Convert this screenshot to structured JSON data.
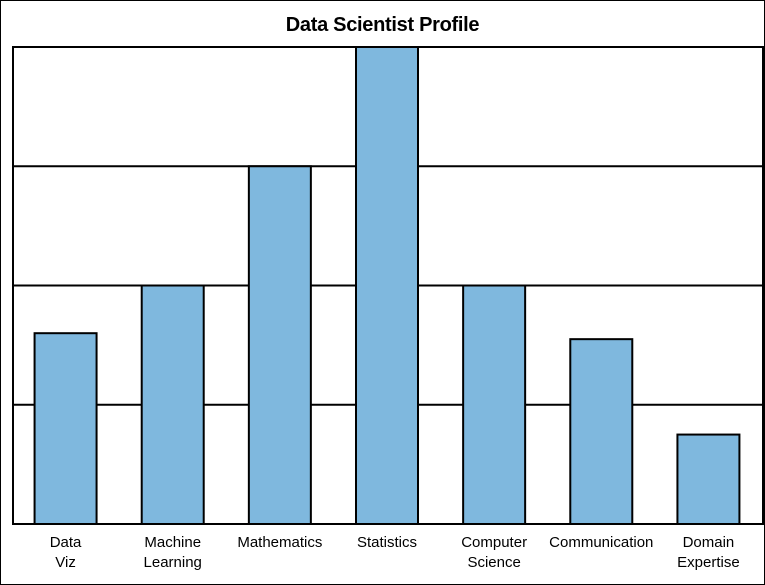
{
  "chart_data": {
    "type": "bar",
    "title": "Data Scientist Profile",
    "xlabel": "",
    "ylabel": "",
    "categories": [
      [
        "Data",
        "Viz"
      ],
      [
        "Machine",
        "Learning"
      ],
      [
        "Mathematics"
      ],
      [
        "Statistics"
      ],
      [
        "Computer",
        "Science"
      ],
      [
        "Communication"
      ],
      [
        "Domain",
        "Expertise"
      ]
    ],
    "values": [
      1.6,
      2.0,
      3.0,
      4.0,
      2.0,
      1.55,
      0.75
    ],
    "ylim": [
      0,
      4
    ],
    "ytick_values": [
      1,
      2,
      3
    ],
    "grid": true,
    "colors": {
      "bar": "#7fb8de",
      "edge": "#000000",
      "grid": "#000000"
    }
  }
}
